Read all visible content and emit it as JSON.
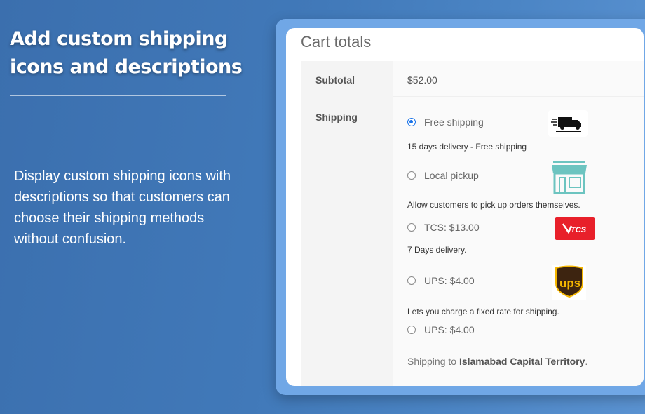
{
  "hero": {
    "title_line1": "Add custom shipping",
    "title_line2": "icons and descriptions",
    "description": "Display custom shipping icons with descriptions so that customers can choose their shipping methods without confusion."
  },
  "cart": {
    "title": "Cart totals",
    "subtotal_label": "Subtotal",
    "subtotal_value": "$52.00",
    "shipping_label": "Shipping",
    "options": [
      {
        "label": "Free shipping",
        "description": "15 days delivery - Free shipping",
        "selected": true,
        "icon": "free-shipping-truck-icon"
      },
      {
        "label": "Local pickup",
        "description": "Allow customers to pick up orders themselves.",
        "selected": false,
        "icon": "storefront-icon"
      },
      {
        "label": "TCS: $13.00",
        "description": "7 Days delivery.",
        "selected": false,
        "icon": "tcs-logo-icon"
      },
      {
        "label": "UPS: $4.00",
        "description": "Lets you charge a fixed rate for shipping.",
        "selected": false,
        "icon": "ups-logo-icon"
      },
      {
        "label": "UPS: $4.00",
        "selected": false
      }
    ],
    "shipping_to_prefix": "Shipping to ",
    "shipping_to_region": "Islamabad Capital Territory",
    "shipping_to_suffix": ".",
    "colors": {
      "radio_selected": "#1a73e8",
      "tcs_red": "#e8202a",
      "ups_brown": "#3d2410",
      "ups_gold": "#f4b600",
      "store_teal": "#6cc4c0"
    }
  }
}
